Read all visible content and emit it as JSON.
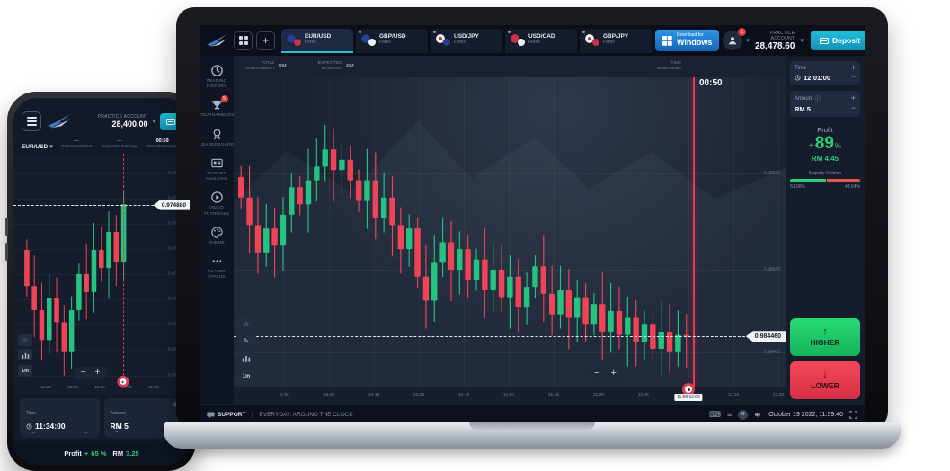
{
  "colors": {
    "accent_cyan": "#25c0d6",
    "green": "#2ad077",
    "red": "#ef4456",
    "deposit_teal": "#1fc0d8",
    "windows_blue": "#2b95e8",
    "chart_bg": "#1a2232",
    "strike_line": "#e23b4e"
  },
  "icons": {
    "plus": "+",
    "minus": "−",
    "caret_down": "▾",
    "arrow_up": "↑",
    "arrow_down": "↓",
    "arrow_left": "←",
    "arrow_right": "→",
    "info": "ⓘ",
    "gear": "⚙",
    "keyboard": "⌨",
    "menu": "≡",
    "star": "☆",
    "pencil": "✎",
    "avatar_letter": "G"
  },
  "laptop": {
    "topbar": {
      "tabs": [
        {
          "pair": "EUR/USD",
          "sub": "Forex",
          "active": true,
          "colors": [
            "#27408f",
            "#c9334a"
          ],
          "dot": false
        },
        {
          "pair": "GBP/USD",
          "sub": "Forex",
          "active": false,
          "colors": [
            "#27408f",
            "#eef2f7"
          ],
          "dot": false
        },
        {
          "pair": "USD/JPY",
          "sub": "Forex",
          "active": false,
          "colors": [
            "#eef2f7",
            "#27408f"
          ],
          "dot": true
        },
        {
          "pair": "USD/CAD",
          "sub": "Forex",
          "active": false,
          "colors": [
            "#c9334a",
            "#eef2f7"
          ],
          "dot": false
        },
        {
          "pair": "GBP/JPY",
          "sub": "Forex",
          "active": false,
          "colors": [
            "#eef2f7",
            "#c9334a"
          ],
          "dot": true
        }
      ],
      "windows_button": {
        "line1": "Download for",
        "line2": "Windows"
      },
      "notification_badge": "1",
      "account_label": "PRACTICE ACCOUNT",
      "balance": "28,478.60",
      "deposit_label": "Deposit"
    },
    "sidebar": [
      {
        "label": "TRADING HISTORY",
        "icon": "clock-icon"
      },
      {
        "label": "TOURNAMENTS",
        "icon": "trophy-icon",
        "badge": "5"
      },
      {
        "label": "LEADERBOARD",
        "icon": "medal-icon"
      },
      {
        "label": "MARKET ANALYSIS",
        "icon": "card-icon"
      },
      {
        "label": "VIDEO TUTORIALS",
        "icon": "play-icon"
      },
      {
        "label": "THEME",
        "icon": "palette-icon"
      },
      {
        "label": "PLAYER STATUS",
        "icon": "dots-icon"
      }
    ],
    "chart": {
      "total_label": "TOTAL INVESTMENT",
      "total_currency": "RM",
      "total_value": "—",
      "expected_label": "EXPECTED EARNING",
      "expected_currency": "RM",
      "expected_value": "—",
      "remaining_label": "TIME REMAINING",
      "countdown": "00:50",
      "strike_price": "0.984460",
      "price_labels": [
        "0.98920",
        "0.98640",
        "0.98400"
      ],
      "time_labels": [
        "9:45",
        "10:00",
        "10:15",
        "10:30",
        "10:45",
        "11:00",
        "11:15",
        "11:30",
        "11:45",
        "12:00",
        "12:15",
        "12:30"
      ],
      "marker_tag": "11:59-12:00",
      "timeframe": "1m",
      "chart_data": {
        "type": "candlestick",
        "pair": "EUR/USD",
        "interval": "1m",
        "ylim": [
          0.983,
          0.992
        ],
        "closes": [
          0.9885,
          0.9877,
          0.9869,
          0.9876,
          0.9871,
          0.988,
          0.9888,
          0.9883,
          0.989,
          0.9894,
          0.9899,
          0.9893,
          0.9896,
          0.989,
          0.9884,
          0.989,
          0.9879,
          0.9885,
          0.9877,
          0.987,
          0.9876,
          0.9862,
          0.9855,
          0.9866,
          0.9872,
          0.9864,
          0.987,
          0.9861,
          0.9867,
          0.9858,
          0.9864,
          0.9856,
          0.9862,
          0.9853,
          0.9859,
          0.9865,
          0.9857,
          0.9851,
          0.9858,
          0.985,
          0.9856,
          0.9848,
          0.9854,
          0.9846,
          0.9852,
          0.9845,
          0.985,
          0.9843,
          0.9848,
          0.9841,
          0.9846,
          0.984,
          0.9845,
          0.98446
        ],
        "first_open_delta": 0.0006,
        "wick": 0.0009,
        "strike": 0.98446,
        "up_color": "#26c281",
        "down_color": "#ef4456"
      }
    },
    "right_panel": {
      "time": {
        "label": "Time",
        "value": "12:01:00"
      },
      "amount": {
        "label": "Amount",
        "value": "RM 5"
      },
      "profit": {
        "label": "Profit",
        "plus": "+",
        "percent": "89",
        "percent_sign": "%",
        "amount": "RM 4.45",
        "majority_label": "Majority Opinion",
        "up_pct": "51.96%",
        "down_pct": "48.04%",
        "up_value": 51.96,
        "down_value": 48.04
      },
      "higher_label": "HIGHER",
      "lower_label": "LOWER"
    },
    "statusbar": {
      "support_label": "SUPPORT",
      "tagline": "EVERYDAY, AROUND THE CLOCK",
      "datetime": "October 19 2022, 11:59:40"
    }
  },
  "phone": {
    "header": {
      "account_label": "PRACTICE ACCOUNT",
      "balance": "28,400.00"
    },
    "subheader": {
      "pair": "EUR/USD",
      "stats": [
        {
          "value": "—",
          "label": "Total Investment",
          "highlight": false
        },
        {
          "value": "—",
          "label": "Expected Earning",
          "highlight": false
        },
        {
          "value": "00:59",
          "label": "Time Remaining",
          "highlight": true
        }
      ]
    },
    "chart": {
      "strike_price": "0.974880",
      "price_labels": [
        "0.974900",
        "0.974850",
        "0.974800",
        "0.974750",
        "0.974700",
        "0.974650",
        "0.974600",
        "0.974550",
        "0.974500"
      ],
      "time_labels": [
        "11:20",
        "11:25",
        "11:30",
        "11:35",
        "11:40"
      ],
      "timeframe": "1m",
      "chart_data": {
        "type": "candlestick",
        "pair": "EUR/USD",
        "interval": "1m",
        "ylim": [
          0.9733,
          0.9753
        ],
        "closes": [
          0.9742,
          0.974,
          0.97375,
          0.9741,
          0.9739,
          0.97365,
          0.974,
          0.9743,
          0.97415,
          0.9745,
          0.97435,
          0.97465,
          0.9744,
          0.97488
        ],
        "first_open_delta": 0.0003,
        "wick": 0.00025,
        "strike": 0.97488,
        "up_color": "#26c281",
        "down_color": "#ef4456"
      }
    },
    "controls": {
      "time": {
        "label": "Time",
        "value": "11:34:00"
      },
      "amount": {
        "label": "Amount",
        "value": "RM 5"
      }
    },
    "footer": {
      "label": "Profit",
      "plus": "+",
      "percent": "65 %",
      "currency": "RM",
      "amount": "3.25"
    }
  }
}
